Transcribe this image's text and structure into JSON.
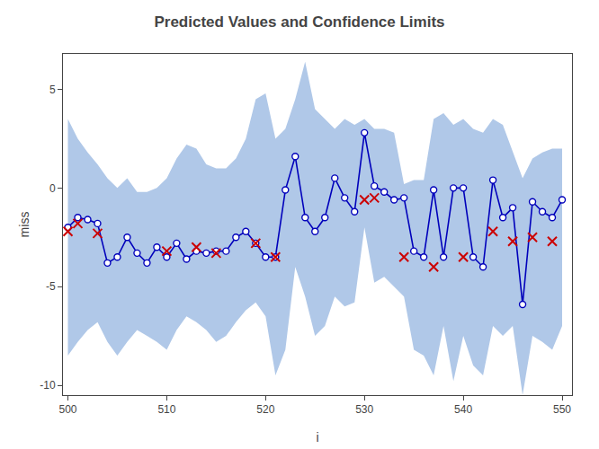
{
  "chart_data": {
    "type": "line",
    "title": "Predicted Values and Confidence Limits",
    "xlabel": "i",
    "ylabel": "miss",
    "xlim": [
      499.5,
      551
    ],
    "ylim": [
      -10.5,
      6.8
    ],
    "xticks": [
      500,
      510,
      520,
      530,
      540,
      550
    ],
    "yticks": [
      -10,
      -5,
      0,
      5
    ],
    "grid": false,
    "x": [
      500,
      501,
      502,
      503,
      504,
      505,
      506,
      507,
      508,
      509,
      510,
      511,
      512,
      513,
      514,
      515,
      516,
      517,
      518,
      519,
      520,
      521,
      522,
      523,
      524,
      525,
      526,
      527,
      528,
      529,
      530,
      531,
      532,
      533,
      534,
      535,
      536,
      537,
      538,
      539,
      540,
      541,
      542,
      543,
      544,
      545,
      546,
      547,
      548,
      549,
      550
    ],
    "series": [
      {
        "type": "band",
        "color": "#b0c8e8",
        "upper": [
          3.5,
          2.5,
          1.8,
          1.2,
          0.5,
          0.0,
          0.5,
          -0.2,
          -0.2,
          0.0,
          0.5,
          1.5,
          2.2,
          2.0,
          1.2,
          1.0,
          1.0,
          1.5,
          2.5,
          4.5,
          4.8,
          2.5,
          3.0,
          4.5,
          6.4,
          4.0,
          3.5,
          3.0,
          3.5,
          3.2,
          3.5,
          3.0,
          3.0,
          2.8,
          0.2,
          0.4,
          0.4,
          3.5,
          3.8,
          3.2,
          3.5,
          3.0,
          2.8,
          3.5,
          3.2,
          1.8,
          0.5,
          1.5,
          1.8,
          2.0,
          2.0
        ],
        "lower": [
          -8.5,
          -7.8,
          -7.2,
          -6.8,
          -7.8,
          -8.5,
          -7.8,
          -7.2,
          -7.5,
          -7.8,
          -8.2,
          -7.2,
          -6.5,
          -6.8,
          -7.2,
          -7.8,
          -7.5,
          -6.8,
          -6.2,
          -5.8,
          -6.5,
          -9.5,
          -8.2,
          -4.0,
          -5.5,
          -7.5,
          -7.0,
          -5.5,
          -6.0,
          -5.8,
          -2.0,
          -4.8,
          -4.5,
          -5.0,
          -5.5,
          -8.2,
          -8.5,
          -9.5,
          -7.0,
          -9.8,
          -7.5,
          -9.0,
          -9.5,
          -7.0,
          -7.5,
          -7.0,
          -10.5,
          -7.5,
          -7.8,
          -8.2,
          -7.0
        ]
      },
      {
        "type": "line",
        "color": "#0000bb",
        "marker": "circle",
        "values": [
          -2.0,
          -1.5,
          -1.6,
          -1.8,
          -3.8,
          -3.5,
          -2.5,
          -3.3,
          -3.8,
          -3.0,
          -3.5,
          -2.8,
          -3.6,
          -3.2,
          -3.3,
          -3.2,
          -3.2,
          -2.5,
          -2.2,
          -2.8,
          -3.5,
          -3.5,
          -0.1,
          1.6,
          -1.5,
          -2.2,
          -1.5,
          0.5,
          -0.5,
          -1.2,
          2.8,
          0.1,
          -0.2,
          -0.6,
          -0.5,
          -3.2,
          -3.5,
          -0.1,
          -3.5,
          -0.0,
          -0.0,
          -3.5,
          -4.0,
          0.4,
          -1.5,
          -1.0,
          -5.9,
          -0.7,
          -1.2,
          -1.5,
          -0.6
        ]
      },
      {
        "type": "scatter",
        "color": "#cc0000",
        "marker": "x",
        "x": [
          500,
          501,
          503,
          510,
          513,
          515,
          519,
          521,
          530,
          531,
          534,
          537,
          540,
          543,
          545,
          547,
          549
        ],
        "values": [
          -2.2,
          -1.8,
          -2.3,
          -3.2,
          -3.0,
          -3.3,
          -2.8,
          -3.5,
          -0.6,
          -0.5,
          -3.5,
          -4.0,
          -3.5,
          -2.2,
          -2.7,
          -2.5,
          -2.7
        ]
      }
    ]
  }
}
